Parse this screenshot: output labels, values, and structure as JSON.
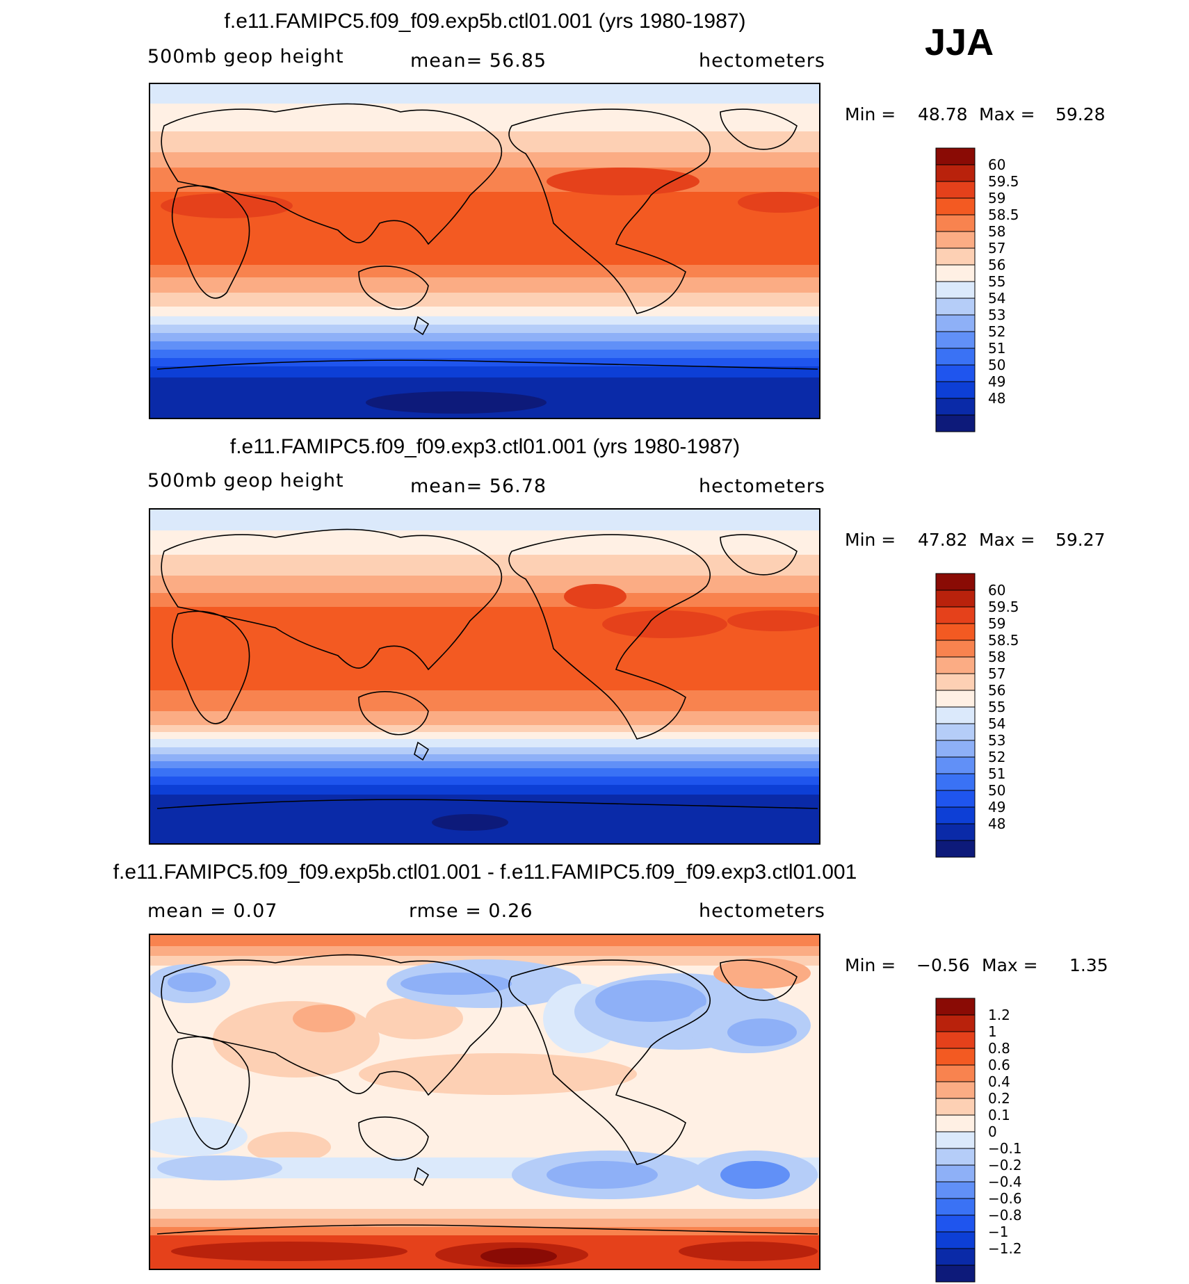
{
  "season": "JJA",
  "colors": {
    "heights": [
      "#0d1a7a",
      "#0a2aa8",
      "#0d3fd6",
      "#1f55ee",
      "#3a72f5",
      "#6190f7",
      "#8eb0f7",
      "#b5cdf8",
      "#dbe9fb",
      "#fff0e4",
      "#fdd0b4",
      "#fbac84",
      "#f8834f",
      "#f35a22",
      "#e5411b",
      "#b9220c",
      "#8a0b05"
    ],
    "diff": [
      "#0d1a7a",
      "#0a2aa8",
      "#0d3fd6",
      "#1f55ee",
      "#3a72f5",
      "#6190f7",
      "#8eb0f7",
      "#b5cdf8",
      "#dbe9fb",
      "#fff0e4",
      "#fdd0b4",
      "#fbac84",
      "#f8834f",
      "#f35a22",
      "#e5411b",
      "#b9220c",
      "#8a0b05"
    ]
  },
  "panels": [
    {
      "title": "f.e11.FAMIPC5.f09_f09.exp5b.ctl01.001 (yrs 1980-1987)",
      "left_label": "500mb  geop  height",
      "center_label": "mean=   56.85",
      "right_label": "hectometers",
      "min_label": "Min  =",
      "min_value": "48.78",
      "max_label": "Max  =",
      "max_value": "59.28",
      "colorbar_labels": [
        "60",
        "59.5",
        "59",
        "58.5",
        "58",
        "57",
        "56",
        "55",
        "54",
        "53",
        "52",
        "51",
        "50",
        "49",
        "48"
      ]
    },
    {
      "title": "f.e11.FAMIPC5.f09_f09.exp3.ctl01.001 (yrs 1980-1987)",
      "left_label": "500mb  geop  height",
      "center_label": "mean=   56.78",
      "right_label": "hectometers",
      "min_label": "Min  =",
      "min_value": "47.82",
      "max_label": "Max  =",
      "max_value": "59.27",
      "colorbar_labels": [
        "60",
        "59.5",
        "59",
        "58.5",
        "58",
        "57",
        "56",
        "55",
        "54",
        "53",
        "52",
        "51",
        "50",
        "49",
        "48"
      ]
    },
    {
      "title": "f.e11.FAMIPC5.f09_f09.exp5b.ctl01.001 - f.e11.FAMIPC5.f09_f09.exp3.ctl01.001",
      "left_label": "mean  =     0.07",
      "center_label": "rmse  =     0.26",
      "right_label": "hectometers",
      "min_label": "Min  =",
      "min_value": "−0.56",
      "max_label": "Max  =",
      "max_value": "1.35",
      "colorbar_labels": [
        "1.2",
        "1",
        "0.8",
        "0.6",
        "0.4",
        "0.2",
        "0.1",
        "0",
        "−0.1",
        "−0.2",
        "−0.4",
        "−0.6",
        "−0.8",
        "−1",
        "−1.2"
      ]
    }
  ]
}
